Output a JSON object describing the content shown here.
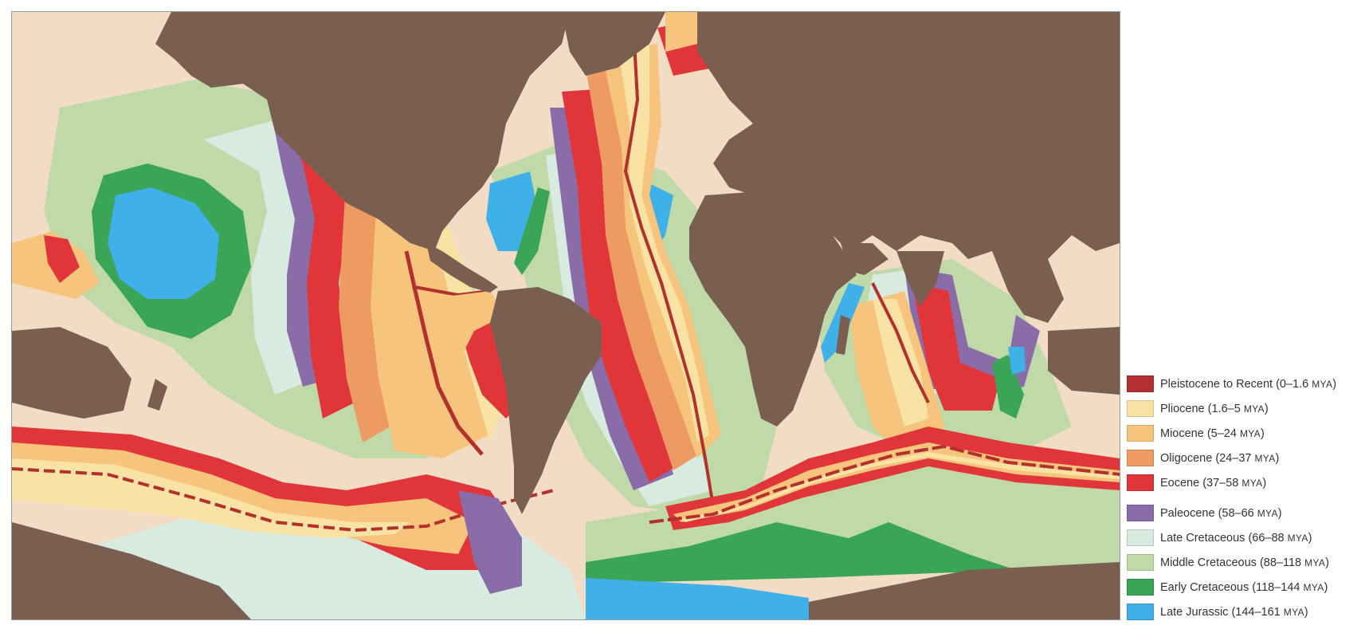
{
  "map": {
    "colors": {
      "land": "#7a5e4f",
      "shelf": "#f3dcc6",
      "pleistocene": "#b2302d",
      "pliocene": "#f8e2a4",
      "miocene": "#f6c47c",
      "oligocene": "#ee9a63",
      "eocene": "#e0363a",
      "paleocene": "#8a6ca8",
      "late_cretaceous": "#d8ebe1",
      "middle_cretaceous": "#bfd9a8",
      "early_cretaceous": "#3aa457",
      "late_jurassic": "#3fb1e8"
    }
  },
  "legend": {
    "items": [
      {
        "id": "pleistocene",
        "label": "Pleistocene to Recent",
        "range": "(0–1.6 ",
        "unit": "MYA",
        "close": ")",
        "color": "#b2302d"
      },
      {
        "id": "pliocene",
        "label": "Pliocene",
        "range": "(1.6–5 ",
        "unit": "MYA",
        "close": ")",
        "color": "#f8e2a4"
      },
      {
        "id": "miocene",
        "label": "Miocene",
        "range": "(5–24 ",
        "unit": "MYA",
        "close": ")",
        "color": "#f6c47c"
      },
      {
        "id": "oligocene",
        "label": "Oligocene",
        "range": "(24–37 ",
        "unit": "MYA",
        "close": ")",
        "color": "#ee9a63"
      },
      {
        "id": "eocene",
        "label": "Eocene",
        "range": "(37–58 ",
        "unit": "MYA",
        "close": ")",
        "color": "#e0363a"
      },
      {
        "id": "paleocene",
        "label": "Paleocene",
        "range": "(58–66 ",
        "unit": "MYA",
        "close": ")",
        "color": "#8a6ca8"
      },
      {
        "id": "late-cretaceous",
        "label": "Late Cretaceous",
        "range": "(66–88 ",
        "unit": "MYA",
        "close": ")",
        "color": "#d8ebe1"
      },
      {
        "id": "middle-cretaceous",
        "label": "Middle Cretaceous",
        "range": "(88–118 ",
        "unit": "MYA",
        "close": ")",
        "color": "#bfd9a8"
      },
      {
        "id": "early-cretaceous",
        "label": "Early Cretaceous",
        "range": "(118–144 ",
        "unit": "MYA",
        "close": ")",
        "color": "#3aa457"
      },
      {
        "id": "late-jurassic",
        "label": "Late Jurassic",
        "range": "(144–161 ",
        "unit": "MYA",
        "close": ")",
        "color": "#3fb1e8"
      }
    ]
  }
}
